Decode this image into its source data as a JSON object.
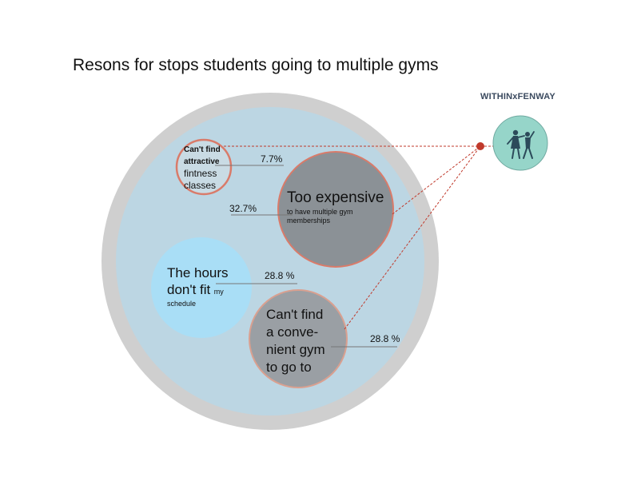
{
  "title": "Resons for stops students going to multiple gyms",
  "brand": "WITHINxFENWAY",
  "logo_icon": "dancing-couple-icon",
  "chart_data": {
    "type": "bubble",
    "title": "Resons for stops students going to multiple gyms",
    "categories": [
      "Can't find attractive fintness classes",
      "Too expensive to have multiple gym memberships",
      "The hours don't fit my schedule",
      "Can't find a convenient gym to go to"
    ],
    "values": [
      7.7,
      32.7,
      28.8,
      28.8
    ],
    "value_labels": [
      "7.7%",
      "32.7%",
      "28.8 %",
      "28.8 %"
    ],
    "unit": "%"
  },
  "labels": {
    "classes": [
      "Can't find",
      "attractive",
      "fintness",
      "classes"
    ],
    "expensive_main": "Too expensive",
    "expensive_sub": [
      "to have multiple gym",
      "memberships"
    ],
    "hours_line1": "The hours",
    "hours_line2": "don't fit",
    "hours_small1": "my",
    "hours_small2": "schedule",
    "convenient": [
      "Can't find",
      "a conve-",
      "nient gym",
      "to go to"
    ]
  },
  "colors": {
    "outer_ring": "#cfcfcf",
    "outer_fill": "#bcd6e3",
    "classes_fill": "#c9dbe4",
    "expensive_fill": "#8b9196",
    "hours_fill": "#a9def6",
    "convenient_fill": "#9a9fa4",
    "accent": "#c0392b",
    "stroke": "#d97b6a",
    "logo_fill": "#96d5c9"
  }
}
